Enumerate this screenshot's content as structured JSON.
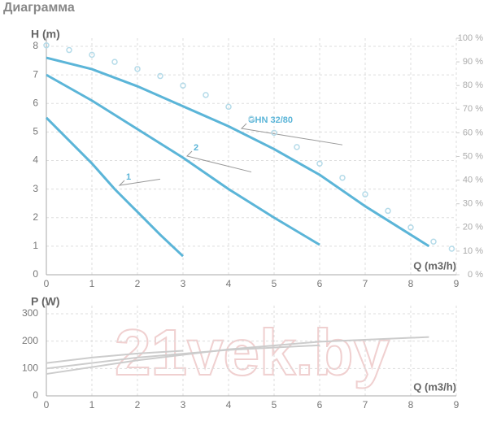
{
  "title": "Диаграмма",
  "watermark": "21vek.by",
  "chart_data": [
    {
      "type": "line",
      "y_label": "H (m)",
      "x_label": "Q (m3/h)",
      "xlim": [
        0,
        9
      ],
      "xticks": [
        0,
        1,
        2,
        3,
        4,
        5,
        6,
        7,
        8,
        9
      ],
      "ylim": [
        0,
        8
      ],
      "yticks": [
        0,
        1,
        2,
        3,
        4,
        5,
        6,
        7,
        8
      ],
      "y2lim": [
        0,
        100
      ],
      "y2ticks": [
        {
          "value": 0,
          "label": "0 %"
        },
        {
          "value": 10,
          "label": "10 %"
        },
        {
          "value": 20,
          "label": "20 %"
        },
        {
          "value": 30,
          "label": "30 %"
        },
        {
          "value": 40,
          "label": "40 %"
        },
        {
          "value": 50,
          "label": "50 %"
        },
        {
          "value": 60,
          "label": "60 %"
        },
        {
          "value": 70,
          "label": "70 %"
        },
        {
          "value": 80,
          "label": "80 %"
        },
        {
          "value": 90,
          "label": "90 %"
        },
        {
          "value": 100,
          "label": "100 %"
        }
      ],
      "grid": true,
      "series": [
        {
          "name": "1",
          "color": "#5bb5d8",
          "x": [
            0,
            0.5,
            1,
            1.5,
            2,
            2.5,
            3
          ],
          "values": [
            5.5,
            4.7,
            3.9,
            3.0,
            2.2,
            1.4,
            0.65
          ]
        },
        {
          "name": "2",
          "color": "#5bb5d8",
          "x": [
            0,
            1,
            2,
            3,
            4,
            5,
            6
          ],
          "values": [
            7,
            6.1,
            5.1,
            4.1,
            3.0,
            2.0,
            1.05
          ]
        },
        {
          "name": "GHN 32/80",
          "color": "#5bb5d8",
          "x": [
            0,
            1,
            2,
            3,
            4,
            5,
            6,
            7,
            8,
            8.4
          ],
          "values": [
            7.6,
            7.2,
            6.6,
            5.9,
            5.2,
            4.4,
            3.5,
            2.4,
            1.4,
            1.0
          ]
        },
        {
          "axis": "y2",
          "marker": "circle",
          "color": "#b5dbe9",
          "x": [
            0,
            0.5,
            1,
            1.5,
            2,
            2.5,
            3,
            3.5,
            4,
            4.5,
            5,
            5.5,
            6,
            6.5,
            7,
            7.5,
            8,
            8.5,
            8.9
          ],
          "values": [
            97,
            95,
            93,
            90,
            87,
            84,
            80,
            76,
            71,
            66,
            60,
            54,
            47,
            41,
            34,
            27,
            20,
            14,
            11
          ]
        }
      ]
    },
    {
      "type": "line",
      "y_label": "P (W)",
      "x_label": "Q (m3/h)",
      "xlim": [
        0,
        9
      ],
      "xticks": [
        0,
        1,
        2,
        3,
        4,
        5,
        6,
        7,
        8,
        9
      ],
      "ylim": [
        0,
        300
      ],
      "yticks": [
        0,
        100,
        200,
        300
      ],
      "grid": true,
      "series": [
        {
          "color": "#cccccc",
          "x": [
            0,
            1,
            2,
            3
          ],
          "values": [
            120,
            140,
            155,
            165
          ]
        },
        {
          "color": "#cccccc",
          "x": [
            0,
            2,
            4,
            6
          ],
          "values": [
            100,
            140,
            168,
            185
          ]
        },
        {
          "color": "#cccccc",
          "x": [
            0,
            2,
            4,
            6,
            8.4
          ],
          "values": [
            80,
            130,
            170,
            198,
            215
          ]
        }
      ]
    }
  ]
}
